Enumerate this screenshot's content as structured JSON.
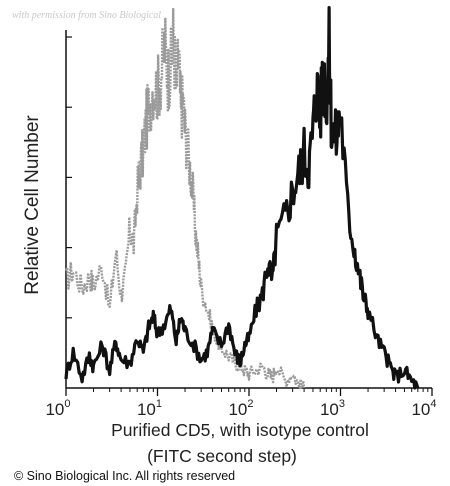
{
  "watermark": "with permission from Sino Biological",
  "copyright": "© Sino Biological Inc. All rights reserved",
  "chart_data": {
    "type": "line",
    "title": "",
    "xlabel_line1": "Purified CD5, with isotype control",
    "xlabel_line2": "(FITC second step)",
    "ylabel": "Relative Cell Number",
    "x_scale": "log",
    "xlim": [
      1,
      10000
    ],
    "ylim": [
      0,
      100
    ],
    "grid": false,
    "legend": "none",
    "x_ticks": [
      {
        "base": "10",
        "exp": "0",
        "value": 1
      },
      {
        "base": "10",
        "exp": "1",
        "value": 10
      },
      {
        "base": "10",
        "exp": "2",
        "value": 100
      },
      {
        "base": "10",
        "exp": "3",
        "value": 1000
      },
      {
        "base": "10",
        "exp": "4",
        "value": 10000
      }
    ],
    "series": [
      {
        "role": "isotype-control",
        "color": "#9a9a9a",
        "x": [
          1,
          1.2,
          1.5,
          1.8,
          2,
          2.5,
          3,
          3.5,
          4,
          4.5,
          5,
          5.5,
          6,
          6.5,
          7,
          7.5,
          8,
          9,
          10,
          11,
          12,
          13,
          14,
          15,
          16,
          17,
          18,
          19,
          20,
          22,
          24,
          26,
          28,
          30,
          35,
          40,
          45,
          50,
          60,
          70,
          80,
          90,
          100,
          120,
          140,
          160,
          180,
          200,
          250,
          300,
          350,
          400
        ],
        "y": [
          30,
          33,
          28,
          31,
          29,
          34,
          22,
          38,
          26,
          32,
          45,
          40,
          55,
          62,
          66,
          74,
          78,
          85,
          83,
          88,
          96,
          87,
          90,
          99,
          82,
          94,
          77,
          80,
          72,
          64,
          56,
          44,
          36,
          28,
          22,
          17,
          13,
          11,
          9,
          7,
          6,
          5,
          4,
          5,
          6,
          4,
          3,
          6,
          2,
          4,
          1,
          0
        ]
      },
      {
        "role": "purified-cd5",
        "color": "#111111",
        "x": [
          1,
          1.2,
          1.5,
          1.8,
          2,
          2.5,
          3,
          3.5,
          4,
          5,
          6,
          7,
          8,
          9,
          10,
          12,
          14,
          16,
          18,
          20,
          25,
          30,
          35,
          40,
          50,
          60,
          70,
          80,
          90,
          100,
          120,
          140,
          160,
          180,
          200,
          250,
          300,
          350,
          400,
          450,
          500,
          550,
          600,
          650,
          700,
          750,
          800,
          900,
          1000,
          1200,
          1400,
          1600,
          1800,
          2000,
          2500,
          3000,
          3500,
          4000,
          5000,
          6000,
          7000
        ],
        "y": [
          4,
          10,
          3,
          9,
          6,
          12,
          5,
          13,
          8,
          7,
          14,
          10,
          17,
          20,
          15,
          18,
          22,
          13,
          20,
          16,
          12,
          8,
          10,
          16,
          12,
          18,
          10,
          7,
          12,
          14,
          22,
          26,
          35,
          30,
          42,
          48,
          55,
          60,
          66,
          62,
          72,
          85,
          76,
          90,
          80,
          95,
          72,
          70,
          78,
          50,
          40,
          32,
          25,
          22,
          14,
          10,
          6,
          3,
          5,
          2,
          0
        ]
      }
    ]
  }
}
